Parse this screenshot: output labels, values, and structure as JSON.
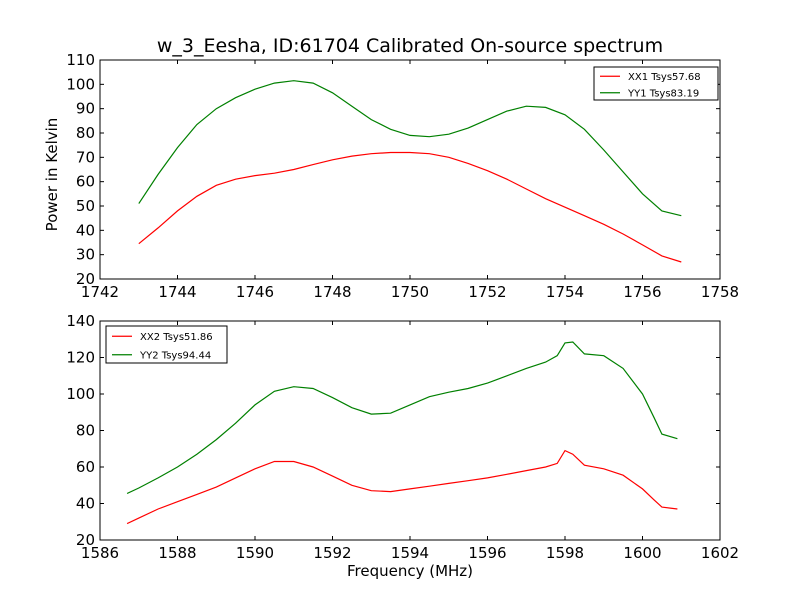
{
  "chart_data": [
    {
      "type": "line",
      "title": "w_3_Eesha, ID:61704 Calibrated On-source spectrum",
      "xlabel": "",
      "ylabel": "Power in Kelvin",
      "xlim": [
        1742,
        1758
      ],
      "ylim": [
        20,
        110
      ],
      "xticks": [
        1742,
        1744,
        1746,
        1748,
        1750,
        1752,
        1754,
        1756,
        1758
      ],
      "yticks": [
        20,
        30,
        40,
        50,
        60,
        70,
        80,
        90,
        100,
        110
      ],
      "legend_position": "top-right",
      "grid": false,
      "series": [
        {
          "name": "XX1 Tsys57.68",
          "color": "#ff0000",
          "x": [
            1743.0,
            1743.5,
            1744.0,
            1744.5,
            1745.0,
            1745.5,
            1746.0,
            1746.5,
            1747.0,
            1747.5,
            1748.0,
            1748.5,
            1749.0,
            1749.5,
            1750.0,
            1750.5,
            1751.0,
            1751.5,
            1752.0,
            1752.5,
            1753.0,
            1753.5,
            1754.0,
            1754.5,
            1755.0,
            1755.5,
            1756.0,
            1756.5,
            1757.0
          ],
          "y": [
            34.5,
            41,
            48,
            54,
            58.5,
            61,
            62.5,
            63.5,
            65,
            67,
            69,
            70.5,
            71.5,
            72,
            72,
            71.5,
            70,
            67.5,
            64.5,
            61,
            57,
            53,
            49.5,
            46,
            42.5,
            38.5,
            34,
            29.5,
            27
          ]
        },
        {
          "name": "YY1 Tsys83.19",
          "color": "#008000",
          "x": [
            1743.0,
            1743.5,
            1744.0,
            1744.5,
            1745.0,
            1745.5,
            1746.0,
            1746.5,
            1747.0,
            1747.5,
            1748.0,
            1748.5,
            1749.0,
            1749.5,
            1750.0,
            1750.5,
            1751.0,
            1751.5,
            1752.0,
            1752.5,
            1753.0,
            1753.5,
            1754.0,
            1754.5,
            1755.0,
            1755.5,
            1756.0,
            1756.5,
            1757.0
          ],
          "y": [
            51,
            63,
            74,
            83.5,
            90,
            94.5,
            98,
            100.5,
            101.5,
            100.5,
            96.5,
            91,
            85.5,
            81.5,
            79,
            78.5,
            79.5,
            82,
            85.5,
            89,
            91,
            90.5,
            87.5,
            81.5,
            73,
            64,
            55,
            48,
            46
          ]
        }
      ]
    },
    {
      "type": "line",
      "title": "",
      "xlabel": "Frequency (MHz)",
      "ylabel": "",
      "xlim": [
        1586,
        1602
      ],
      "ylim": [
        20,
        140
      ],
      "xticks": [
        1586,
        1588,
        1590,
        1592,
        1594,
        1596,
        1598,
        1600,
        1602
      ],
      "yticks": [
        20,
        40,
        60,
        80,
        100,
        120,
        140
      ],
      "legend_position": "top-left",
      "grid": false,
      "series": [
        {
          "name": "XX2 Tsys51.86",
          "color": "#ff0000",
          "x": [
            1586.7,
            1587.0,
            1587.5,
            1588.0,
            1588.5,
            1589.0,
            1589.5,
            1590.0,
            1590.5,
            1591.0,
            1591.5,
            1592.0,
            1592.5,
            1593.0,
            1593.5,
            1594.0,
            1594.5,
            1595.0,
            1595.5,
            1596.0,
            1596.5,
            1597.0,
            1597.5,
            1597.8,
            1598.0,
            1598.2,
            1598.5,
            1599.0,
            1599.5,
            1600.0,
            1600.3,
            1600.5,
            1600.9
          ],
          "y": [
            29,
            32,
            37,
            41,
            45,
            49,
            54,
            59,
            63,
            63,
            60,
            55,
            50,
            47,
            46.5,
            48,
            49.5,
            51,
            52.5,
            54,
            56,
            58,
            60,
            62,
            69,
            67,
            61,
            59,
            55.5,
            48,
            42,
            38,
            37
          ]
        },
        {
          "name": "YY2 Tsys94.44",
          "color": "#008000",
          "x": [
            1586.7,
            1587.0,
            1587.5,
            1588.0,
            1588.5,
            1589.0,
            1589.5,
            1590.0,
            1590.5,
            1591.0,
            1591.5,
            1592.0,
            1592.5,
            1593.0,
            1593.5,
            1594.0,
            1594.5,
            1595.0,
            1595.5,
            1596.0,
            1596.5,
            1597.0,
            1597.5,
            1597.8,
            1598.0,
            1598.2,
            1598.5,
            1599.0,
            1599.5,
            1600.0,
            1600.3,
            1600.5,
            1600.9
          ],
          "y": [
            45.5,
            48.5,
            54,
            60,
            67,
            75,
            84,
            94,
            101.5,
            104,
            103,
            98,
            92.5,
            89,
            89.5,
            94,
            98.5,
            101,
            103,
            106,
            110,
            114,
            117.5,
            121,
            128,
            128.5,
            122,
            121,
            114,
            100,
            87,
            78,
            75.5
          ]
        }
      ]
    }
  ]
}
